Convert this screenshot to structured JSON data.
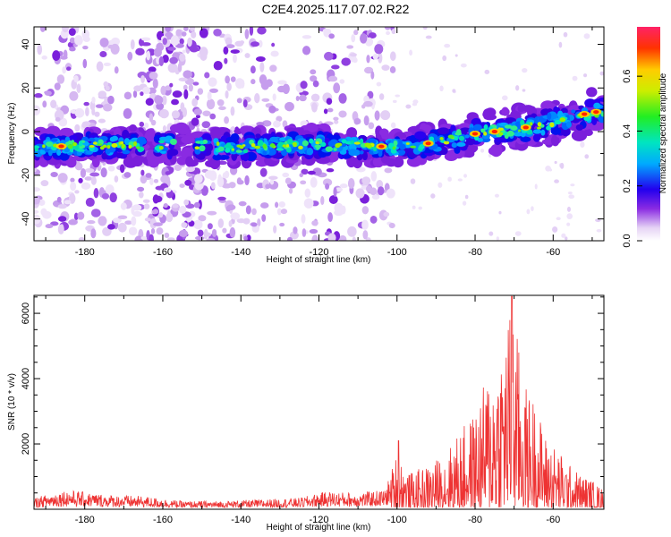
{
  "title": "C2E4.2025.117.07.02.R22",
  "chart_data": [
    {
      "type": "heatmap",
      "xlabel": "Height of straight line (km)",
      "ylabel": "Frequency (Hz)",
      "xlim": [
        -193,
        -47
      ],
      "ylim": [
        -50,
        48
      ],
      "xticks": [
        -180,
        -160,
        -140,
        -120,
        -100,
        -80,
        -60
      ],
      "yticks": [
        -40,
        -20,
        0,
        20,
        40
      ],
      "colorbar": {
        "label": "Normalized spectral amplitude",
        "range": [
          0,
          0.78
        ],
        "ticks": [
          0.0,
          0.2,
          0.4,
          0.6
        ],
        "tick_labels": [
          "0.0",
          "0.2",
          "0.4",
          "0.6"
        ]
      },
      "ridge": {
        "description": "frequency of dominant spectral band vs height",
        "x": [
          -193,
          -165,
          -140,
          -120,
          -100,
          -90,
          -80,
          -70,
          -60,
          -50,
          -47
        ],
        "y": [
          -7,
          -6,
          -7,
          -6,
          -7,
          -5,
          -1,
          1,
          4,
          9,
          9
        ]
      },
      "noise_band_x_range": [
        -193,
        -105
      ]
    },
    {
      "type": "line",
      "xlabel": "Height of straight line (km)",
      "ylabel": "SNR (10 * v/v)",
      "xlim": [
        -193,
        -47
      ],
      "ylim": [
        0,
        6550
      ],
      "xticks": [
        -180,
        -160,
        -140,
        -120,
        -100,
        -80,
        -60
      ],
      "yticks": [
        2000,
        4000,
        6000
      ],
      "color": "#ee3333",
      "envelope": {
        "x": [
          -193,
          -185,
          -175,
          -165,
          -155,
          -145,
          -135,
          -125,
          -118,
          -110,
          -103,
          -100,
          -97,
          -93,
          -88,
          -84,
          -80,
          -77,
          -74,
          -72,
          -70.5,
          -69,
          -67,
          -65,
          -62,
          -59,
          -56,
          -53,
          -50,
          -47
        ],
        "y": [
          350,
          600,
          450,
          400,
          250,
          250,
          300,
          350,
          550,
          500,
          600,
          1800,
          1100,
          1300,
          1700,
          2400,
          3000,
          4100,
          5000,
          5800,
          6500,
          5200,
          3800,
          3500,
          2300,
          1900,
          1400,
          1100,
          900,
          600
        ]
      }
    }
  ]
}
